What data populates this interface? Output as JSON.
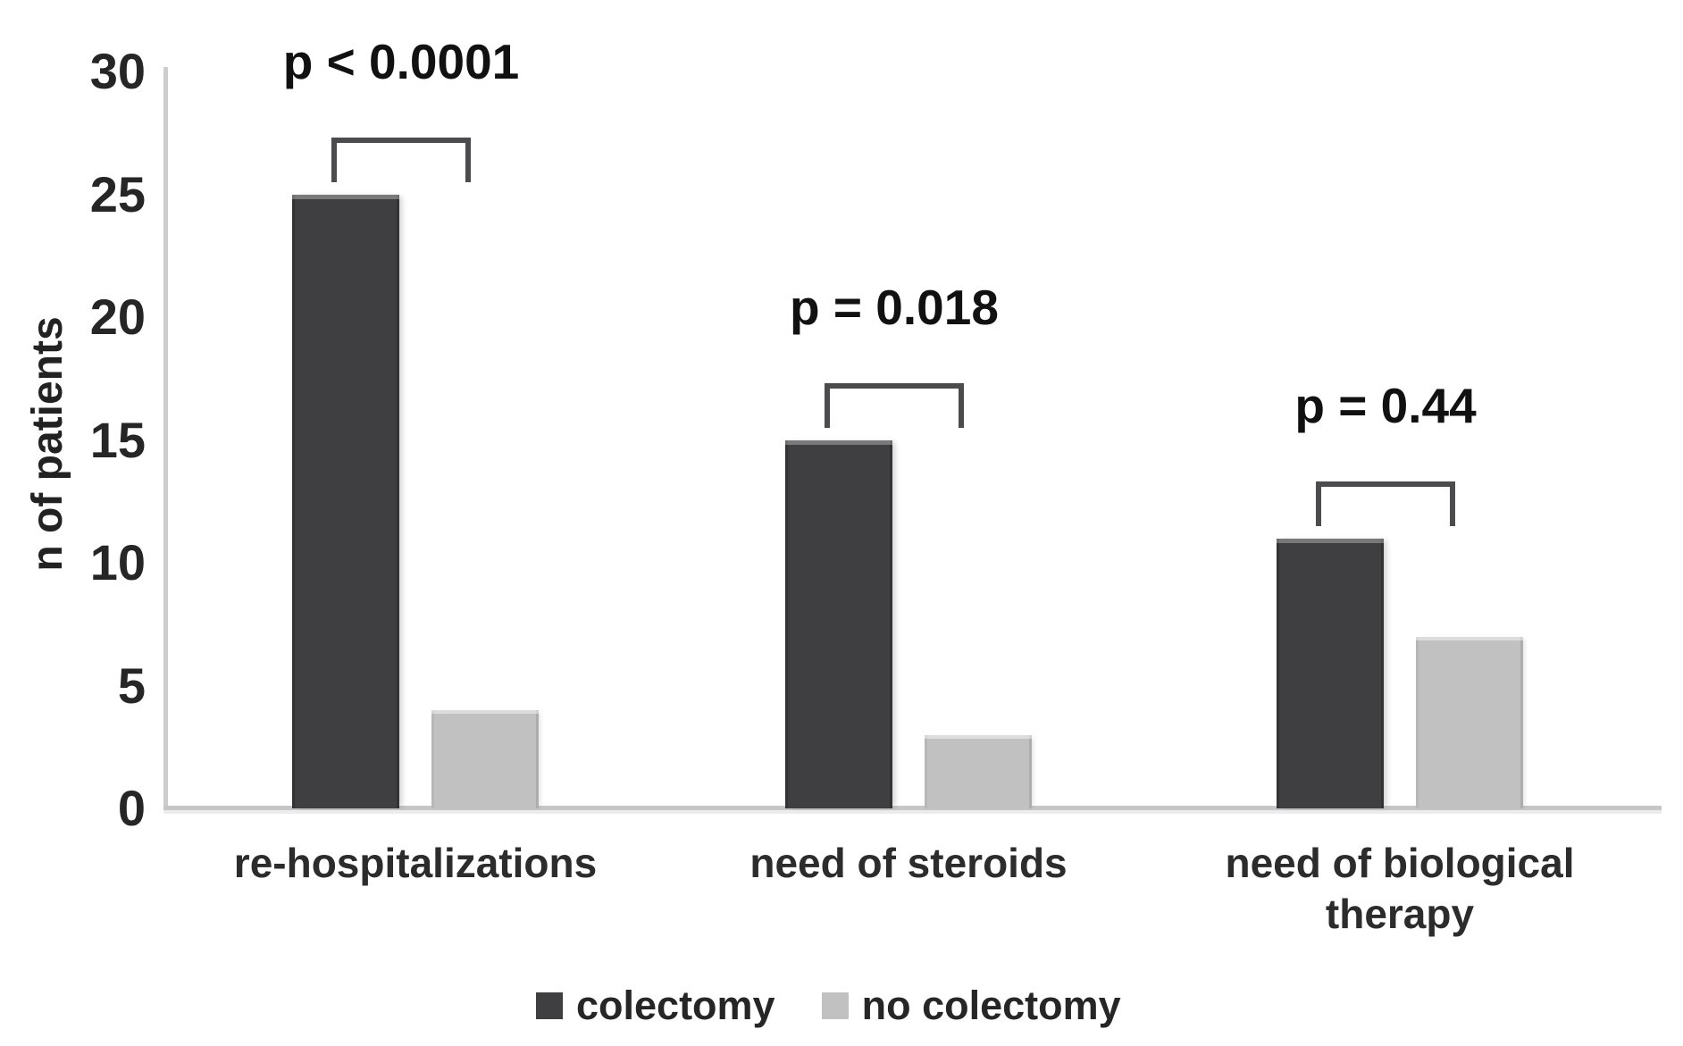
{
  "chart_data": {
    "type": "bar",
    "title": "",
    "xlabel": "",
    "ylabel": "n of patients",
    "ylim": [
      0,
      30
    ],
    "yticks": [
      0,
      5,
      10,
      15,
      20,
      25,
      30
    ],
    "grid": "off",
    "legend_position": "bottom",
    "categories": [
      "re-hospitalizations",
      "need of steroids",
      "need of biological therapy"
    ],
    "series": [
      {
        "name": "colectomy",
        "color": "#3f3f41",
        "values": [
          25,
          15,
          11
        ]
      },
      {
        "name": "no colectomy",
        "color": "#c1c1c1",
        "values": [
          4,
          3,
          7
        ]
      }
    ],
    "annotations": [
      {
        "category": "re-hospitalizations",
        "text": "p < 0.0001"
      },
      {
        "category": "need of steroids",
        "text": "p = 0.018"
      },
      {
        "category": "need of biological therapy",
        "text": "p = 0.44"
      }
    ],
    "colors": {
      "axis_line": "#c6c6c6",
      "bracket": "#4c4c4e",
      "text": "#1a1a1a"
    }
  }
}
